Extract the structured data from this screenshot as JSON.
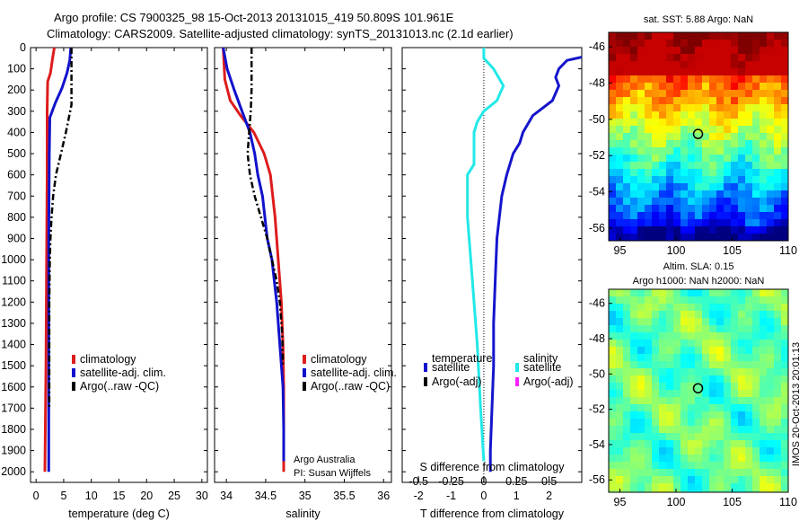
{
  "header": {
    "line1": "Argo profile: CS 7900325_98 15-Oct-2013 20131015_419 50.809S 101.961E",
    "line2": "Climatology: CARS2009. Satellite-adjusted climatology: synTS_20131013.nc (2.1d earlier)"
  },
  "colors": {
    "climatology": "#dd1c1c",
    "satellite_adj": "#1111cc",
    "argo": "#000000",
    "temp_diff": "#1515cc",
    "sal_diff": "#22e8e8",
    "argo_sal_adj": "#ff22ff"
  },
  "chart_data": [
    {
      "type": "line",
      "panel": "temperature",
      "xlabel": "temperature (deg C)",
      "ylabel": "",
      "xlim": [
        -1,
        31
      ],
      "ylim": [
        2050,
        0
      ],
      "y_reversed": true,
      "xticks": [
        "0",
        "5",
        "10",
        "15",
        "20",
        "25",
        "30"
      ],
      "yticks": [
        "0",
        "100",
        "200",
        "300",
        "400",
        "500",
        "600",
        "700",
        "800",
        "900",
        "1000",
        "1100",
        "1200",
        "1300",
        "1400",
        "1500",
        "1600",
        "1700",
        "1800",
        "1900",
        "2000"
      ],
      "legend_position": "lower-middle",
      "series": [
        {
          "name": "climatology",
          "line": "solid",
          "color_key": "climatology",
          "points": [
            [
              3.3,
              0
            ],
            [
              3.0,
              50
            ],
            [
              2.6,
              120
            ],
            [
              2.1,
              160
            ],
            [
              2.0,
              300
            ],
            [
              2.0,
              600
            ],
            [
              1.9,
              1000
            ],
            [
              1.8,
              1500
            ],
            [
              1.6,
              2000
            ]
          ]
        },
        {
          "name": "satellite-adj. clim.",
          "line": "solid",
          "color_key": "satellite_adj",
          "points": [
            [
              6.3,
              0
            ],
            [
              6.1,
              60
            ],
            [
              5.6,
              120
            ],
            [
              4.7,
              190
            ],
            [
              3.5,
              260
            ],
            [
              2.5,
              330
            ],
            [
              2.4,
              500
            ],
            [
              2.3,
              900
            ],
            [
              2.3,
              1500
            ],
            [
              2.3,
              2000
            ]
          ]
        },
        {
          "name": "Argo(..raw -QC)",
          "line": "dashdot",
          "color_key": "argo",
          "points": [
            [
              6.4,
              0
            ],
            [
              6.4,
              100
            ],
            [
              6.4,
              200
            ],
            [
              6.4,
              270
            ],
            [
              5.4,
              400
            ],
            [
              4.5,
              500
            ],
            [
              3.6,
              600
            ],
            [
              3.1,
              700
            ],
            [
              2.8,
              800
            ],
            [
              2.6,
              900
            ],
            [
              2.5,
              1000
            ],
            [
              2.4,
              1200
            ],
            [
              2.4,
              1500
            ],
            [
              2.4,
              1700
            ]
          ]
        }
      ]
    },
    {
      "type": "line",
      "panel": "salinity",
      "xlabel": "salinity",
      "xlim": [
        33.85,
        36.1
      ],
      "ylim": [
        2050,
        0
      ],
      "y_reversed": true,
      "xticks": [
        "34",
        "34.5",
        "35",
        "35.5",
        "36"
      ],
      "legend_position": "lower-right",
      "annotation": [
        "Argo Australia",
        "PI: Susan Wijffels"
      ],
      "series": [
        {
          "name": "climatology",
          "line": "solid",
          "color_key": "climatology",
          "points": [
            [
              33.96,
              0
            ],
            [
              33.98,
              150
            ],
            [
              34.05,
              250
            ],
            [
              34.18,
              320
            ],
            [
              34.35,
              400
            ],
            [
              34.48,
              500
            ],
            [
              34.56,
              600
            ],
            [
              34.62,
              800
            ],
            [
              34.66,
              1000
            ],
            [
              34.7,
              1200
            ],
            [
              34.72,
              1400
            ],
            [
              34.73,
              1600
            ],
            [
              34.73,
              2000
            ]
          ]
        },
        {
          "name": "satellite-adj. clim.",
          "line": "solid",
          "color_key": "satellite_adj",
          "points": [
            [
              33.96,
              0
            ],
            [
              34.01,
              100
            ],
            [
              34.1,
              200
            ],
            [
              34.2,
              300
            ],
            [
              34.3,
              400
            ],
            [
              34.36,
              500
            ],
            [
              34.4,
              600
            ],
            [
              34.46,
              700
            ],
            [
              34.52,
              900
            ],
            [
              34.58,
              1000
            ],
            [
              34.64,
              1200
            ],
            [
              34.68,
              1400
            ],
            [
              34.72,
              1600
            ],
            [
              34.73,
              1800
            ],
            [
              34.73,
              1950
            ]
          ]
        },
        {
          "name": "Argo(..raw -QC)",
          "line": "dashdot",
          "color_key": "argo",
          "points": [
            [
              34.32,
              0
            ],
            [
              34.32,
              100
            ],
            [
              34.32,
              200
            ],
            [
              34.31,
              300
            ],
            [
              34.29,
              400
            ],
            [
              34.27,
              500
            ],
            [
              34.3,
              600
            ],
            [
              34.36,
              700
            ],
            [
              34.44,
              800
            ],
            [
              34.52,
              900
            ],
            [
              34.58,
              1000
            ],
            [
              34.64,
              1100
            ],
            [
              34.68,
              1200
            ],
            [
              34.71,
              1350
            ],
            [
              34.72,
              1500
            ]
          ]
        }
      ]
    },
    {
      "type": "line",
      "panel": "difference",
      "xlabel": "T difference from climatology",
      "top_axis_label": "S difference from climatology",
      "xlim": [
        -2.5,
        3.0
      ],
      "ylim": [
        2050,
        0
      ],
      "y_reversed": true,
      "xticks": [
        "-2",
        "-1",
        "0",
        "1",
        "2"
      ],
      "top_xticks": [
        "-0.5",
        "-0.25",
        "0",
        "0.25",
        "0.5"
      ],
      "zero_line": "dotted",
      "legend": {
        "temperature_title": "temperature",
        "salinity_title": "salinity",
        "satellite": "satellite",
        "argo_adj": "Argo(-adj)"
      },
      "series": [
        {
          "name": "temperature satellite",
          "color_key": "temp_diff",
          "points": [
            [
              3.0,
              45
            ],
            [
              2.55,
              60
            ],
            [
              2.3,
              100
            ],
            [
              2.2,
              140
            ],
            [
              2.3,
              180
            ],
            [
              2.1,
              250
            ],
            [
              1.5,
              320
            ],
            [
              1.2,
              400
            ],
            [
              1.1,
              450
            ],
            [
              0.9,
              500
            ],
            [
              0.7,
              600
            ],
            [
              0.55,
              700
            ],
            [
              0.4,
              900
            ],
            [
              0.35,
              1100
            ],
            [
              0.3,
              1300
            ],
            [
              0.3,
              1500
            ],
            [
              0.25,
              1700
            ],
            [
              0.2,
              1900
            ],
            [
              0.2,
              2000
            ]
          ]
        },
        {
          "name": "salinity satellite",
          "color_key": "sal_diff",
          "points": [
            [
              0.0,
              0
            ],
            [
              0.0,
              50
            ],
            [
              0.3,
              100
            ],
            [
              0.6,
              180
            ],
            [
              0.4,
              250
            ],
            [
              0.0,
              300
            ],
            [
              -0.2,
              350
            ],
            [
              -0.3,
              400
            ],
            [
              -0.3,
              550
            ],
            [
              -0.5,
              600
            ],
            [
              -0.5,
              800
            ],
            [
              -0.4,
              1000
            ],
            [
              -0.3,
              1200
            ],
            [
              -0.2,
              1400
            ],
            [
              -0.1,
              1700
            ],
            [
              0.0,
              1950
            ]
          ]
        }
      ]
    },
    {
      "type": "heatmap",
      "panel": "sst-map",
      "title": "sat. SST: 5.88  Argo: NaN",
      "xticks": [
        "95",
        "100",
        "105",
        "110"
      ],
      "yticks": [
        "-46",
        "-48",
        "-50",
        "-52",
        "-54",
        "-56"
      ],
      "xlim": [
        94,
        110
      ],
      "ylim": [
        -56.7,
        -45.2
      ],
      "marker": {
        "lon": 101.961,
        "lat": -50.809
      }
    },
    {
      "type": "heatmap",
      "panel": "sla-map",
      "title_lines": [
        "Altim. SLA: 0.15",
        "Argo h1000: NaN h2000: NaN"
      ],
      "xticks": [
        "95",
        "100",
        "105",
        "110"
      ],
      "yticks": [
        "-46",
        "-48",
        "-50",
        "-52",
        "-54",
        "-56"
      ],
      "xlim": [
        94,
        110
      ],
      "ylim": [
        -56.7,
        -45.2
      ],
      "marker": {
        "lon": 101.961,
        "lat": -50.809
      },
      "side_label": "IMOS 20-Oct-2013 20:01:13"
    }
  ]
}
